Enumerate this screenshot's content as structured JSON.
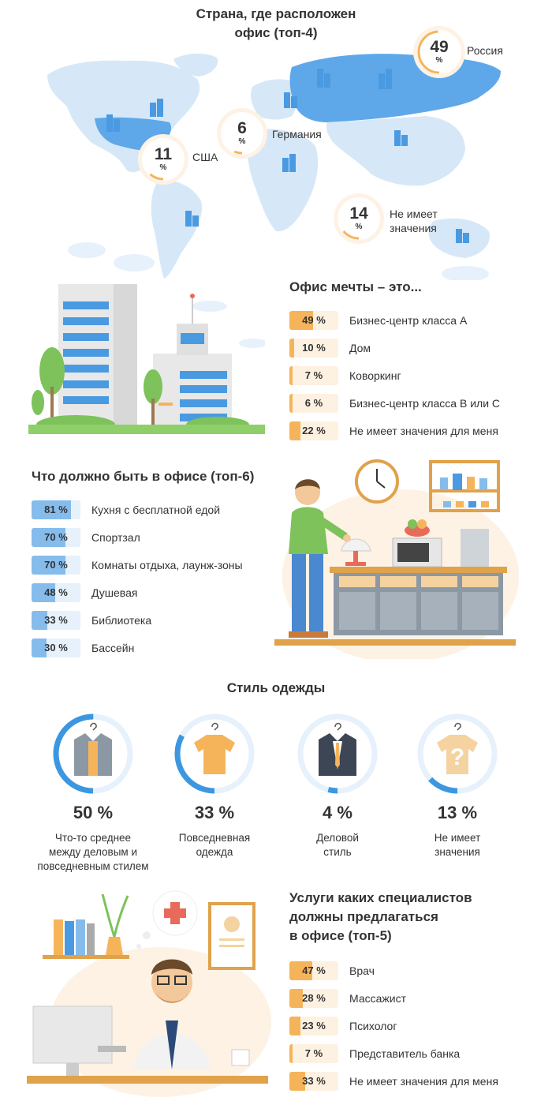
{
  "map_section": {
    "title_line1": "Страна, где расположен",
    "title_line2": "офис (топ-4)",
    "badges": [
      {
        "country": "Россия",
        "value": 49,
        "value_text": "49",
        "unit": "%"
      },
      {
        "country": "Германия",
        "value": 6,
        "value_text": "6",
        "unit": "%"
      },
      {
        "country": "США",
        "value": 11,
        "value_text": "11",
        "unit": "%"
      },
      {
        "country_line1": "Не имеет",
        "country_line2": "значения",
        "value": 14,
        "value_text": "14",
        "unit": "%"
      }
    ]
  },
  "dream_office": {
    "title": "Офис мечты – это..."
  },
  "office_needs": {
    "title": "Что должно быть в офисе (топ-6)"
  },
  "clothing": {
    "title": "Стиль одежды",
    "items": [
      {
        "value": 50,
        "pct_text": "50 %",
        "line1": "Что-то среднее",
        "line2": "между деловым и",
        "line3": "повседневным стилем",
        "icon": "hybrid-jacket-icon"
      },
      {
        "value": 33,
        "pct_text": "33 %",
        "line1": "Повседневная",
        "line2": "одежда",
        "line3": "",
        "icon": "tshirt-icon"
      },
      {
        "value": 4,
        "pct_text": "4 %",
        "line1": "Деловой",
        "line2": "стиль",
        "line3": "",
        "icon": "suit-icon"
      },
      {
        "value": 13,
        "pct_text": "13 %",
        "line1": "Не имеет",
        "line2": "значения",
        "line3": "",
        "icon": "question-shirt-icon"
      }
    ]
  },
  "specialists": {
    "title_line1": "Услуги каких специалистов",
    "title_line2": "должны предлагаться",
    "title_line3": "в офисе (топ-5)"
  },
  "colors": {
    "orange": "#f6b45a",
    "orange_light": "#fdf1e2",
    "blue": "#86bcec",
    "blue_light": "#e6f1fc",
    "ring_blue": "#3c97e0",
    "map_blue": "#d6e8f8",
    "russia_blue": "#5ea8ea"
  },
  "chart_data": [
    {
      "type": "bar",
      "title": "Офис мечты – это...",
      "categories": [
        "Бизнес-центр класса А",
        "Дом",
        "Коворкинг",
        "Бизнес-центр класса В или С",
        "Не имеет значения для меня"
      ],
      "values": [
        49,
        10,
        7,
        6,
        22
      ],
      "labels": [
        "49 %",
        "10 %",
        "7 %",
        "6 %",
        "22 %"
      ],
      "unit": "%"
    },
    {
      "type": "bar",
      "title": "Что должно быть в офисе (топ-6)",
      "categories": [
        "Кухня с бесплатной едой",
        "Спортзал",
        "Комнаты отдыха, лаунж-зоны",
        "Душевая",
        "Библиотека",
        "Бассейн"
      ],
      "values": [
        81,
        70,
        70,
        48,
        33,
        30
      ],
      "labels": [
        "81 %",
        "70 %",
        "70 %",
        "48 %",
        "33 %",
        "30 %"
      ],
      "unit": "%"
    },
    {
      "type": "bar",
      "title": "Услуги каких специалистов должны предлагаться в офисе (топ-5)",
      "categories": [
        "Врач",
        "Массажист",
        "Психолог",
        "Представитель банка",
        "Не имеет значения для меня"
      ],
      "values": [
        47,
        28,
        23,
        7,
        33
      ],
      "labels": [
        "47 %",
        "28 %",
        "23 %",
        "7 %",
        "33 %"
      ],
      "unit": "%"
    }
  ]
}
